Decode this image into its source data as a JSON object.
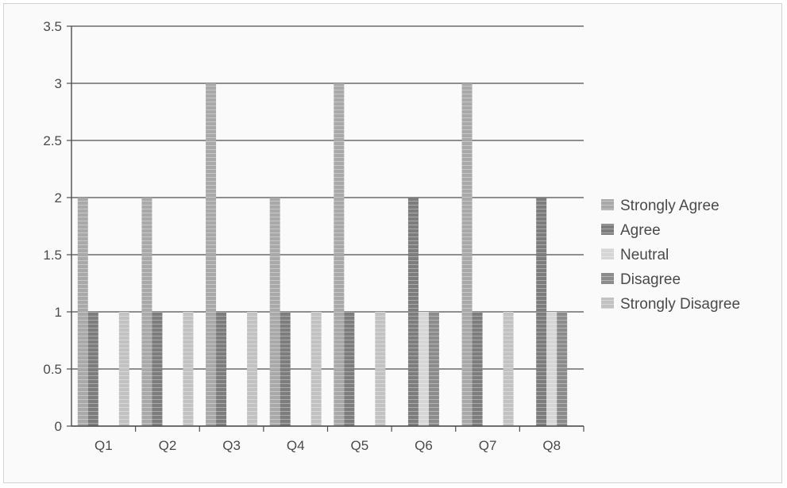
{
  "chart_data": {
    "type": "bar",
    "categories": [
      "Q1",
      "Q2",
      "Q3",
      "Q4",
      "Q5",
      "Q6",
      "Q7",
      "Q8"
    ],
    "series": [
      {
        "name": "Strongly Agree",
        "values": [
          2,
          2,
          3,
          2,
          3,
          0,
          3,
          0
        ],
        "color": "#a9a9a9"
      },
      {
        "name": "Agree",
        "values": [
          1,
          1,
          1,
          1,
          1,
          2,
          1,
          2
        ],
        "color": "#7d7d7d"
      },
      {
        "name": "Neutral",
        "values": [
          0,
          0,
          0,
          0,
          0,
          1,
          0,
          1
        ],
        "color": "#d6d6d6"
      },
      {
        "name": "Disagree",
        "values": [
          0,
          0,
          0,
          0,
          0,
          1,
          0,
          1
        ],
        "color": "#8c8c8c"
      },
      {
        "name": "Strongly Disagree",
        "values": [
          1,
          1,
          1,
          1,
          1,
          0,
          1,
          0
        ],
        "color": "#c2c2c2"
      }
    ],
    "stacking": "none",
    "ylim": [
      0,
      3.5
    ],
    "yticks": [
      "0",
      "0.5",
      "1",
      "1.5",
      "2",
      "2.5",
      "3",
      "3.5"
    ],
    "grid": true,
    "legend_position": "right",
    "title": "",
    "xlabel": "",
    "ylabel": ""
  }
}
